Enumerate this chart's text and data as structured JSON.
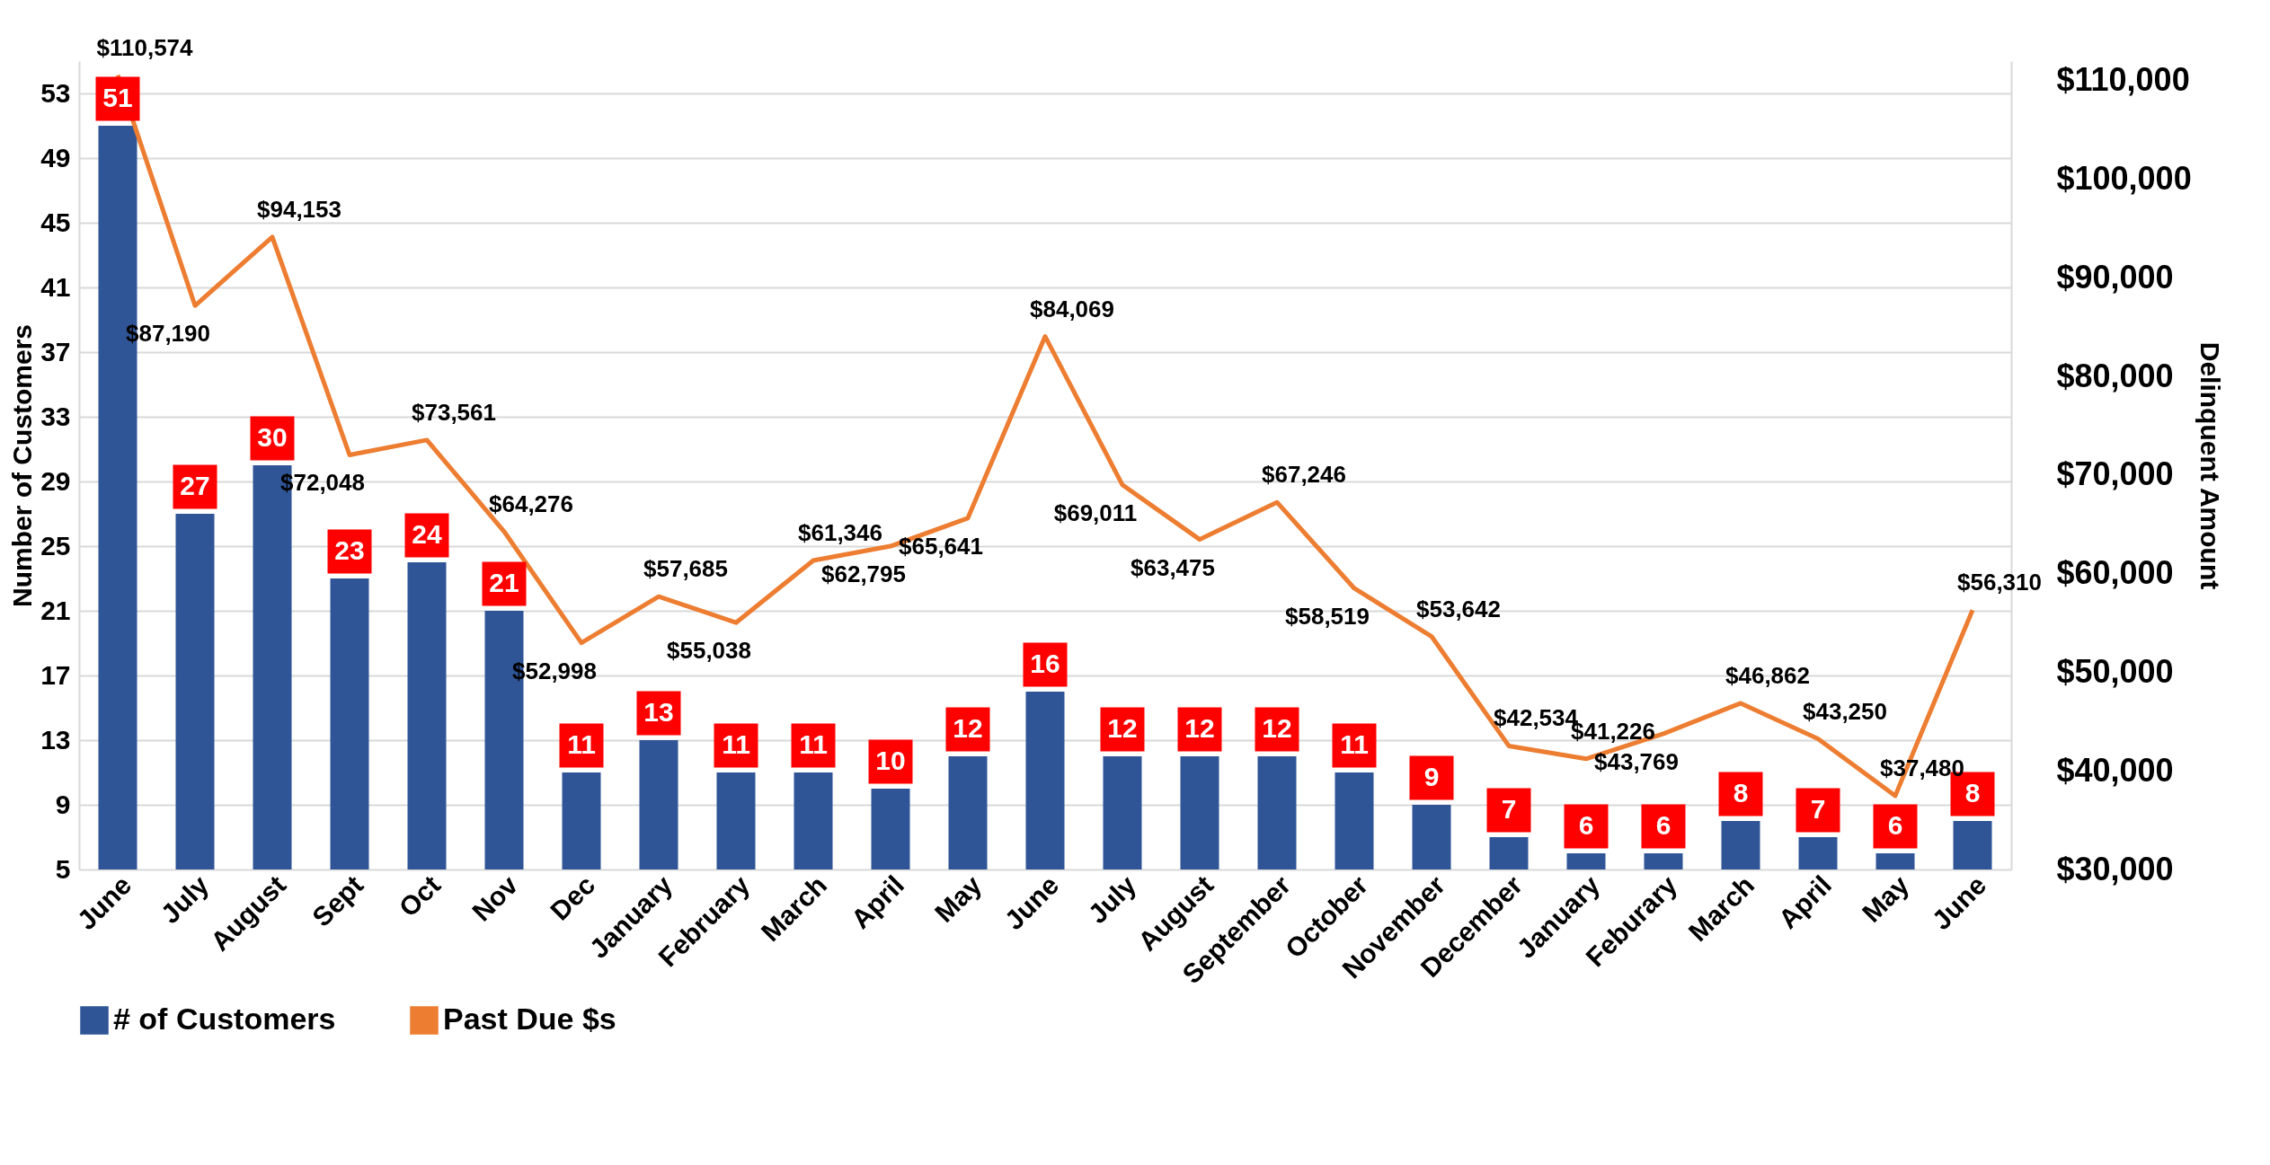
{
  "chart_data": {
    "type": "bar",
    "ylabel": "Number of Customers",
    "y2label": "Delinquent Amount",
    "categories": [
      "June",
      "July",
      "August",
      "Sept",
      "Oct",
      "Nov",
      "Dec",
      "January",
      "February",
      "March",
      "April",
      "May",
      "June",
      "July",
      "August",
      "September",
      "October",
      "November",
      "December",
      "January",
      "Feburary",
      "March",
      "April",
      "May",
      "June"
    ],
    "series": [
      {
        "name": "# of Customers",
        "color": "#2f5597",
        "values": [
          51,
          27,
          30,
          23,
          24,
          21,
          11,
          13,
          11,
          11,
          10,
          12,
          16,
          12,
          12,
          12,
          11,
          9,
          7,
          6,
          6,
          8,
          7,
          6,
          8
        ]
      },
      {
        "name": "Past Due $s",
        "type": "line",
        "axis": "y2",
        "color": "#ed7d31",
        "values": [
          110574,
          87190,
          94153,
          72048,
          73561,
          64276,
          52998,
          57685,
          55038,
          61346,
          62795,
          65641,
          84069,
          69011,
          63475,
          67246,
          58519,
          53642,
          42534,
          41226,
          43769,
          46862,
          43250,
          37480,
          56310
        ],
        "value_labels": [
          "$110,574",
          "$87,190",
          "$94,153",
          "$72,048",
          "$73,561",
          "$64,276",
          "$52,998",
          "$57,685",
          "$55,038",
          "$61,346",
          "$62,795",
          "$65,641",
          "$84,069",
          "$69,011",
          "$63,475",
          "$67,246",
          "$58,519",
          "$53,642",
          "$42,534",
          "$41,226",
          "$43,769",
          "$46,862",
          "$43,250",
          "$37,480",
          "$56,310"
        ]
      }
    ],
    "data_labels": true,
    "ylim": [
      5,
      55
    ],
    "yticks": [
      5,
      9,
      13,
      17,
      21,
      25,
      29,
      33,
      37,
      41,
      45,
      49,
      53
    ],
    "y2lim": [
      30000,
      112000
    ],
    "y2ticks": [
      {
        "value": 30000,
        "label": "$30,000"
      },
      {
        "value": 40000,
        "label": "$40,000"
      },
      {
        "value": 50000,
        "label": "$50,000"
      },
      {
        "value": 60000,
        "label": "$60,000"
      },
      {
        "value": 70000,
        "label": "$70,000"
      },
      {
        "value": 80000,
        "label": "$80,000"
      },
      {
        "value": 90000,
        "label": "$90,000"
      },
      {
        "value": 100000,
        "label": "$100,000"
      },
      {
        "value": 110000,
        "label": "$110,000"
      }
    ],
    "grid": "y",
    "legend": "bottom"
  }
}
